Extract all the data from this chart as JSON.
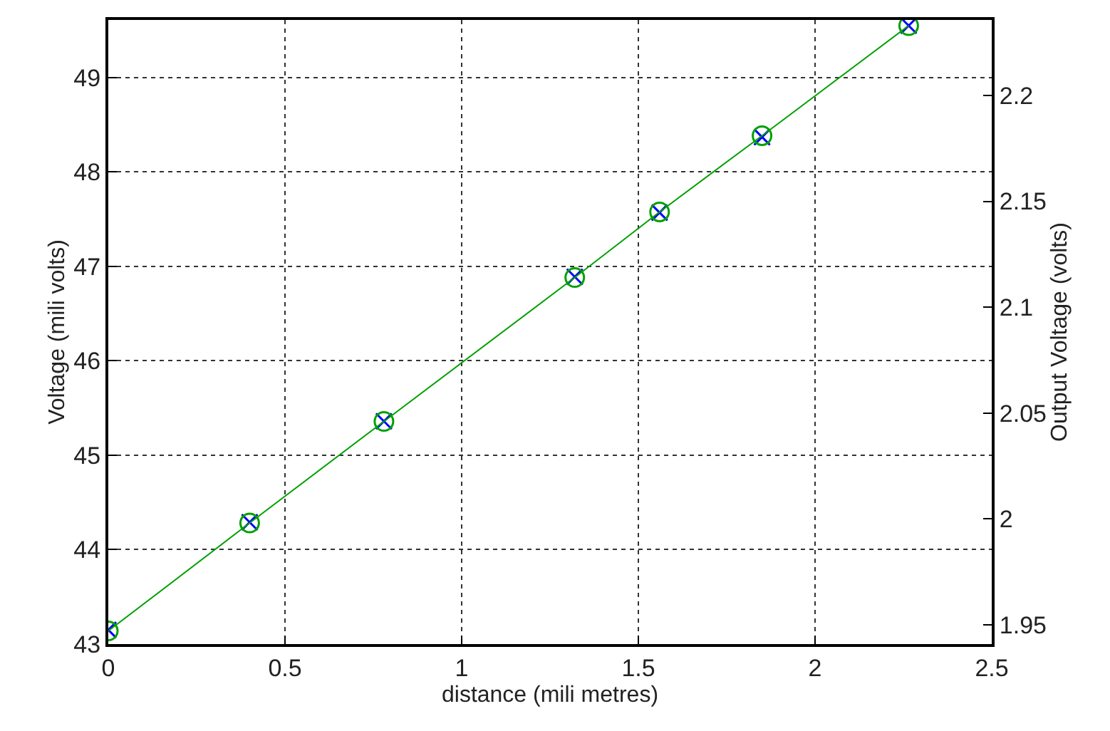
{
  "chart_data": {
    "type": "line",
    "xlabel": "distance (mili metres)",
    "ylabel": "Voltage (mili volts)",
    "y2label": "Output Voltage (volts)",
    "xlim": [
      0,
      2.5
    ],
    "xticks": [
      0,
      0.5,
      1,
      1.5,
      2,
      2.5
    ],
    "ylim": [
      43,
      49.61
    ],
    "yticks": [
      43,
      44,
      45,
      46,
      47,
      48,
      49
    ],
    "y2lim": [
      1.9408,
      2.2357
    ],
    "y2ticks": [
      1.95,
      2,
      2.05,
      2.1,
      2.15,
      2.2
    ],
    "grid": true,
    "series": [
      {
        "type": "scatter",
        "color": "#0000ff",
        "marker": "cross",
        "x": [
          0,
          0.4,
          0.78,
          1.32,
          1.56,
          1.85,
          2.265
        ],
        "values": [
          43.15,
          44.29,
          45.36,
          46.89,
          47.57,
          48.37,
          49.55
        ]
      },
      {
        "axis": "y2",
        "color": "#00a000",
        "marker": "circle",
        "line_style": "solid",
        "x": [
          0,
          0.4,
          0.78,
          1.32,
          1.56,
          1.85,
          2.265
        ],
        "values": [
          1.947,
          1.998,
          2.046,
          2.114,
          2.145,
          2.181,
          2.233
        ]
      }
    ]
  }
}
